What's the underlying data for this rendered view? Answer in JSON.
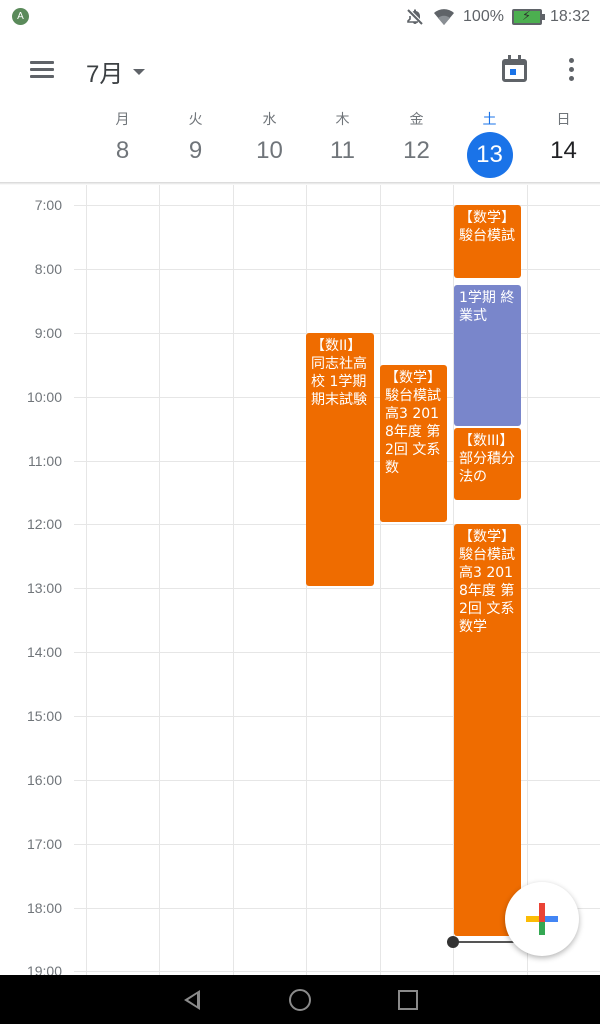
{
  "status_bar": {
    "notification_letter": "A",
    "battery_percent": "100%",
    "time": "18:32",
    "icons": [
      "notifications-off-icon",
      "wifi-icon",
      "battery-charging-icon"
    ]
  },
  "app_bar": {
    "month": "7月",
    "icons": [
      "menu-icon",
      "chevron-down-icon",
      "calendar-today-icon",
      "more-vert-icon"
    ]
  },
  "days": [
    {
      "dow": "月",
      "num": "8"
    },
    {
      "dow": "火",
      "num": "9"
    },
    {
      "dow": "水",
      "num": "10"
    },
    {
      "dow": "木",
      "num": "11"
    },
    {
      "dow": "金",
      "num": "12"
    },
    {
      "dow": "土",
      "num": "13",
      "today": true
    },
    {
      "dow": "日",
      "num": "14"
    }
  ],
  "hours": [
    "7:00",
    "8:00",
    "9:00",
    "10:00",
    "11:00",
    "12:00",
    "13:00",
    "14:00",
    "15:00",
    "16:00",
    "17:00",
    "18:00",
    "19:00"
  ],
  "events": [
    {
      "day": "土",
      "title": "【数学】駿台模試",
      "color": "#ef6c00"
    },
    {
      "day": "土",
      "title": "1学期 終業式",
      "color": "#7986cb"
    },
    {
      "day": "木",
      "title": "【数II】同志社高校 1学期期末試験",
      "color": "#ef6c00"
    },
    {
      "day": "金",
      "title": "【数学】駿台模試 高3 2018年度 第2回 文系数",
      "color": "#ef6c00"
    },
    {
      "day": "土",
      "title": "【数III】部分積分法の",
      "color": "#ef6c00"
    },
    {
      "day": "土",
      "title": "【数学】駿台模試 高3 2018年度 第2回 文系数学",
      "color": "#ef6c00"
    }
  ],
  "fab": {
    "icon": "plus-icon"
  },
  "nav": {
    "icons": [
      "back-icon",
      "home-icon",
      "recents-icon"
    ]
  }
}
